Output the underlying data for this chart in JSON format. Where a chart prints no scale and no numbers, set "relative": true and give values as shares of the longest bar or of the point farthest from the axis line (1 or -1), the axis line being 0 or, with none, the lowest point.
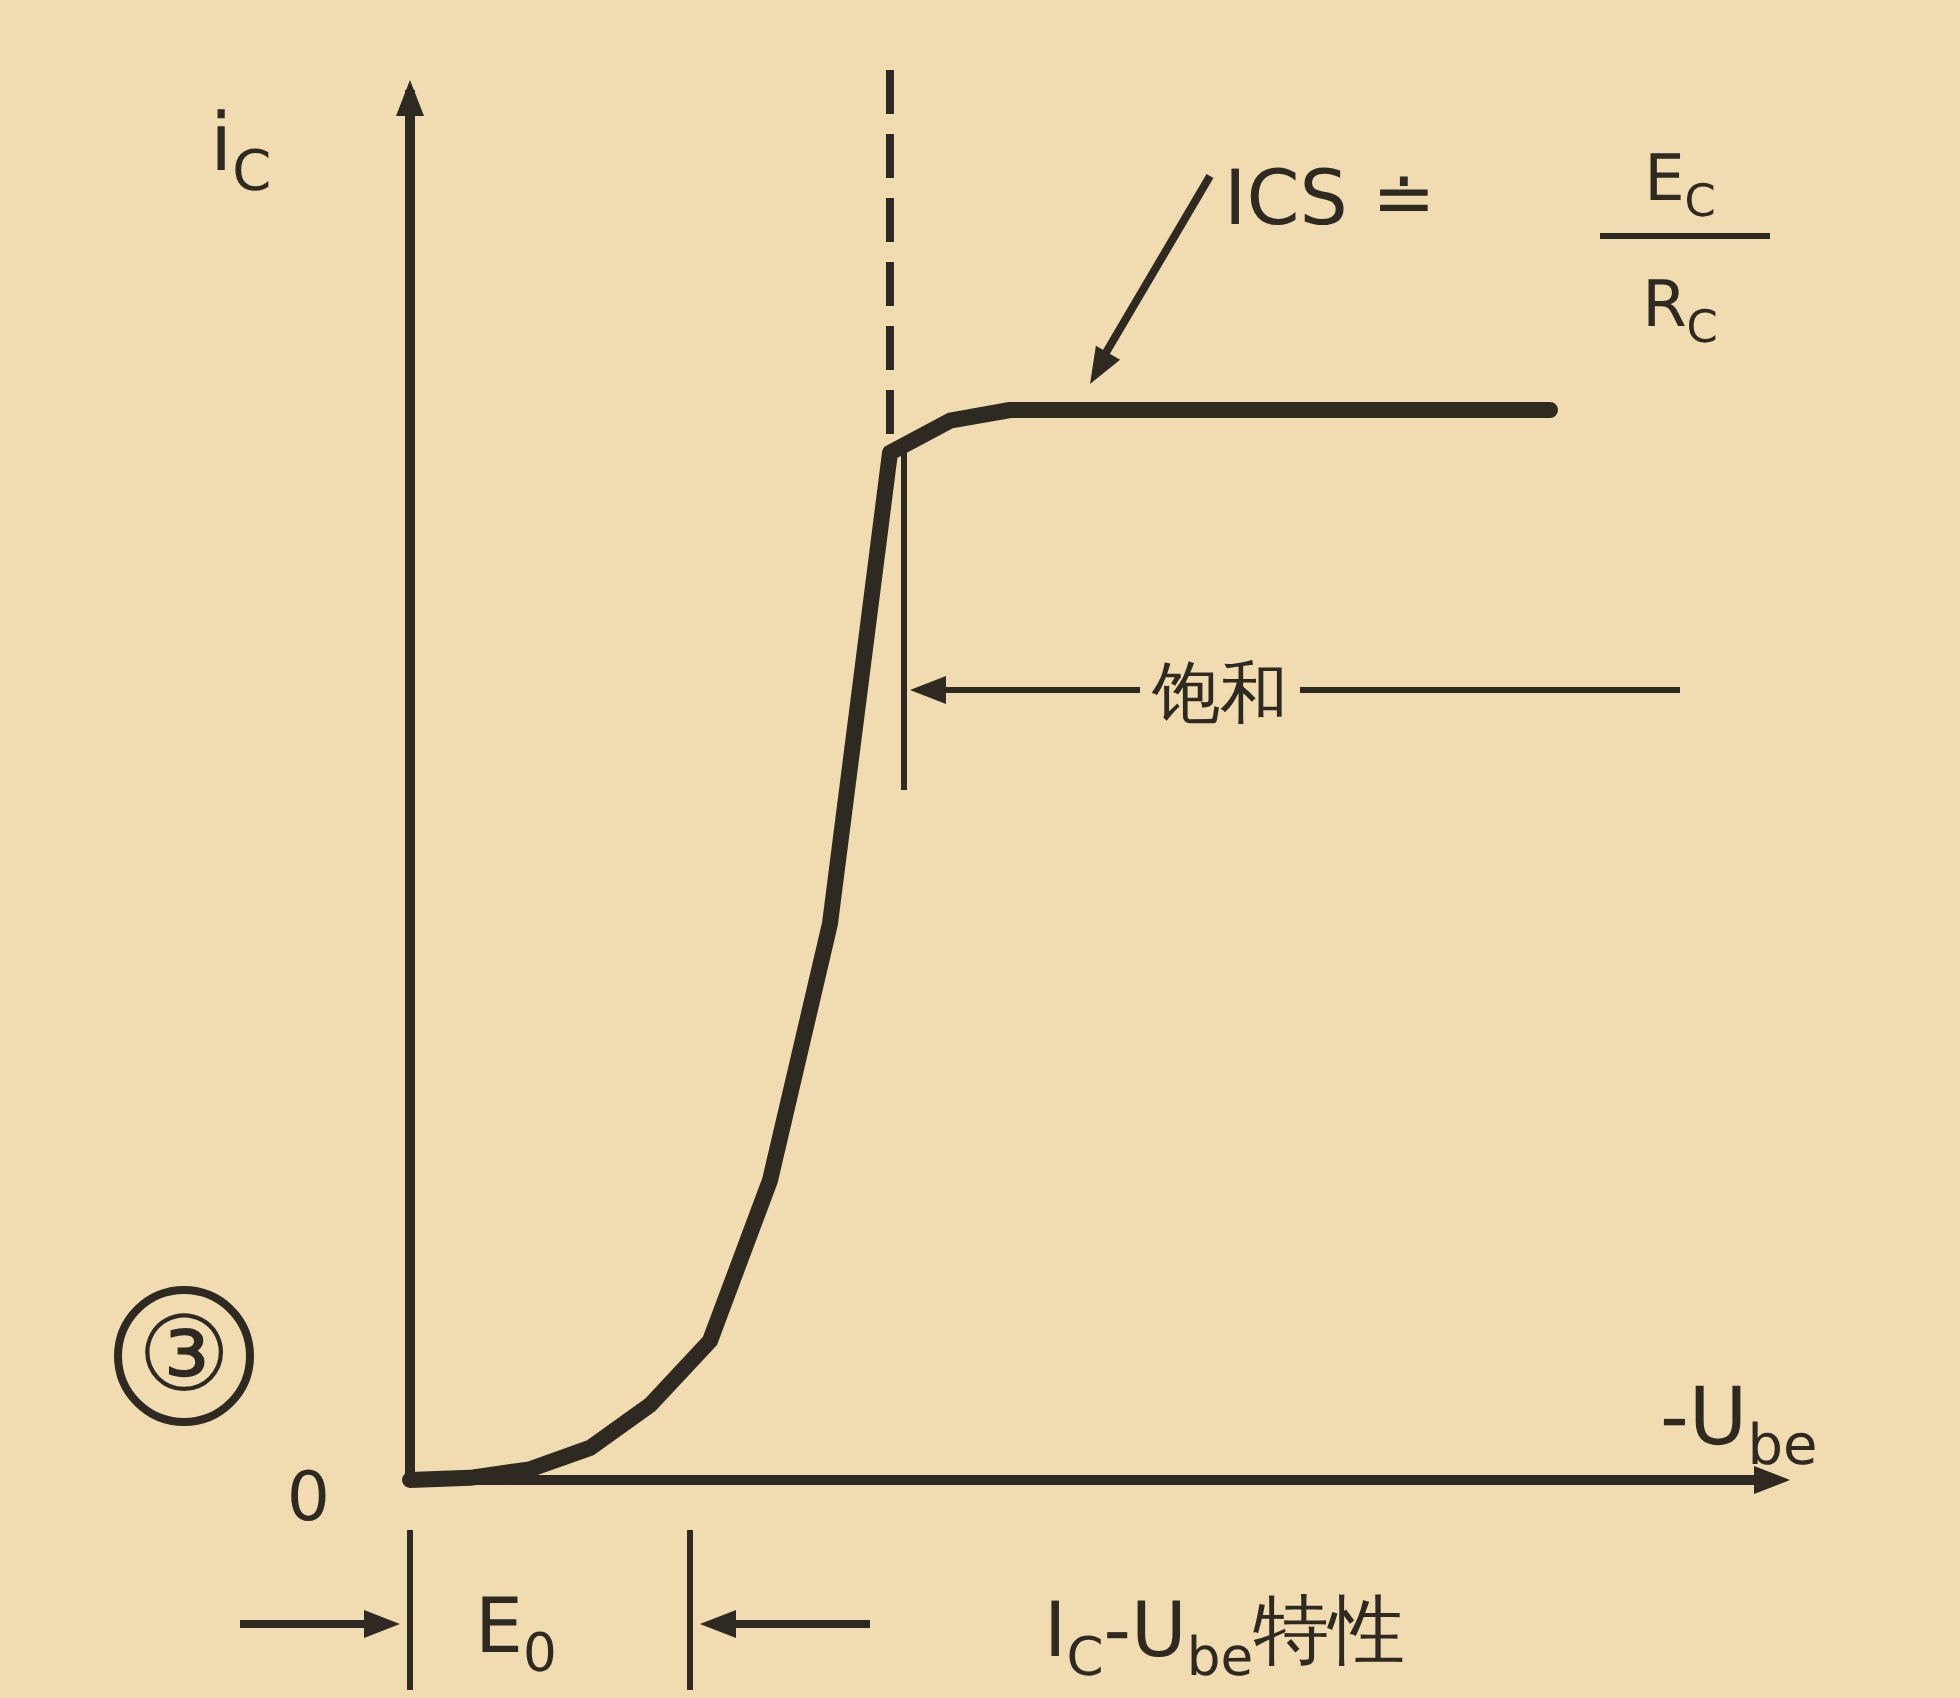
{
  "chart_data": {
    "type": "line",
    "relative": true,
    "title": "I$_{C}$-U$_{be}$特性",
    "xlabel": "-U$_{be}$",
    "ylabel": "i$_{C}$",
    "categories": [
      null,
      null,
      null,
      null,
      null,
      null,
      null,
      null,
      null,
      null,
      null,
      null,
      null,
      null,
      null,
      null,
      null,
      null,
      null,
      null
    ],
    "series": [
      {
        "color": "#2e2a22",
        "values": [
          0,
          0.002,
          0.01,
          0.03,
          0.07,
          0.13,
          0.28,
          0.52,
          0.96,
          0.99,
          1,
          1,
          1,
          1,
          1,
          1,
          1,
          1,
          1,
          1
        ]
      }
    ],
    "annotations": [
      "0",
      "③",
      "ICS ≐",
      "E$_{C}$",
      "R$_{C}$",
      "饱和",
      "E$_{0}$"
    ]
  }
}
